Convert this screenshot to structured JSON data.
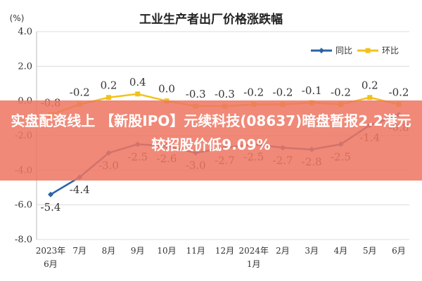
{
  "chart_data": {
    "type": "line",
    "title": "工业生产者出厂价格涨跌幅",
    "unit_label": "(%)",
    "categories": [
      [
        "2023年",
        "6月"
      ],
      [
        "7月"
      ],
      [
        "8月"
      ],
      [
        "9月"
      ],
      [
        "10月"
      ],
      [
        "11月"
      ],
      [
        "12月"
      ],
      [
        "2024年",
        "1月"
      ],
      [
        "2月"
      ],
      [
        "3月"
      ],
      [
        "4月"
      ],
      [
        "5月"
      ],
      [
        "6月"
      ]
    ],
    "yticks": [
      "4.0",
      "2.0",
      "0.0",
      "-2.0",
      "-4.0",
      "-6.0",
      "-8.0"
    ],
    "ylim": [
      -8,
      4
    ],
    "grid": true,
    "legend_position": "top-right",
    "series": [
      {
        "name": "同比",
        "color": "#2a64a6",
        "values": [
          -5.4,
          -4.4,
          -3.0,
          -2.5,
          -2.6,
          -3.0,
          -2.7,
          -2.5,
          -2.7,
          -2.8,
          -2.5,
          -1.4,
          -0.8
        ],
        "labels": [
          "-5.4",
          "-4.4",
          "-3.0",
          "-2.5",
          "-2.6",
          "-3.0",
          "-2.7",
          "-2.5",
          "-2.7",
          "-2.8",
          "-2.5",
          "-1.4",
          "-0.8"
        ]
      },
      {
        "name": "环比",
        "color": "#f2c21b",
        "values": [
          -0.8,
          -0.2,
          0.2,
          0.4,
          0.0,
          -0.3,
          -0.3,
          -0.2,
          -0.2,
          -0.1,
          -0.2,
          0.2,
          -0.2
        ],
        "labels": [
          "-0.8",
          "-0.2",
          "0.2",
          "0.4",
          "0.0",
          "-0.3",
          "-0.3",
          "-0.2",
          "-0.2",
          "-0.1",
          "-0.2",
          "0.2",
          "-0.2"
        ]
      }
    ]
  },
  "overlay": {
    "headline": "实盘配资线上 【新股IPO】元续科技(08637)暗盘暂报2.2港元 较招股价低9.09%",
    "color": "#ee7662"
  }
}
